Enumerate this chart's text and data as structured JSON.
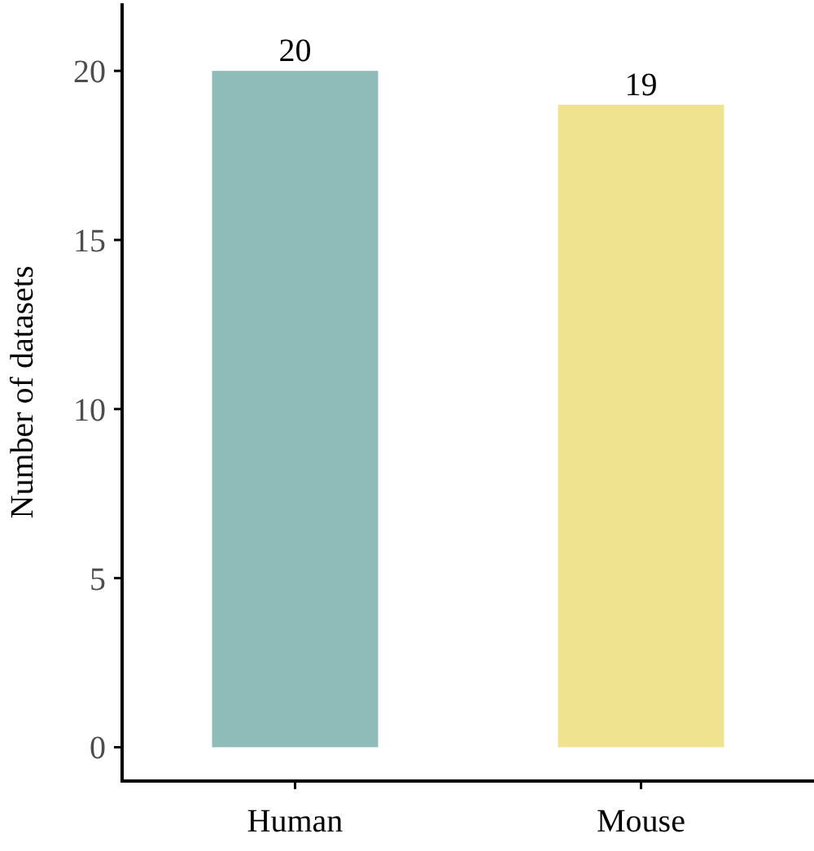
{
  "chart_data": {
    "type": "bar",
    "ylabel": "Number of datasets",
    "categories": [
      "Human",
      "Mouse"
    ],
    "values": [
      20,
      19
    ],
    "colors": [
      "#8fbcb9",
      "#efe38f"
    ],
    "ylim": [
      -1,
      22
    ],
    "yticks": [
      0,
      5,
      10,
      15,
      20
    ],
    "data_labels": true
  }
}
